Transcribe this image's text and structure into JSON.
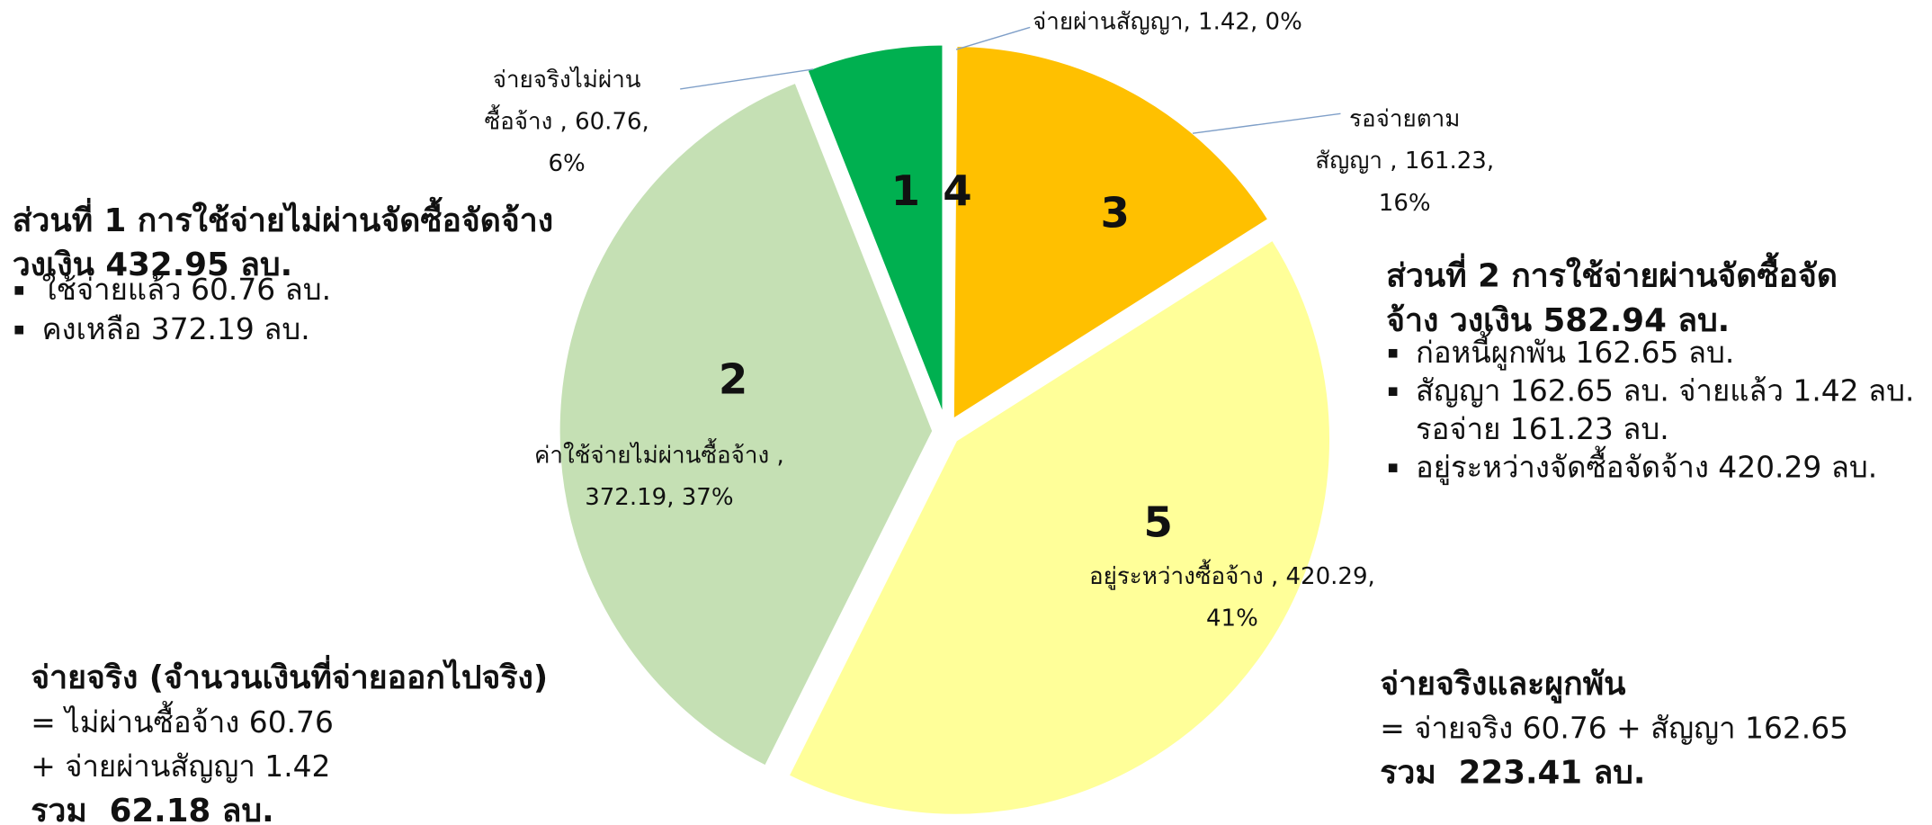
{
  "chart_data": {
    "type": "pie",
    "values": [
      1.42,
      161.23,
      420.29,
      372.19,
      60.76
    ],
    "colors": [
      "#F2B705",
      "#FFC000",
      "#FFFF99",
      "#C5E0B4",
      "#00B050"
    ],
    "slice_numbers": [
      4,
      3,
      5,
      2,
      1
    ],
    "value_labels": [
      [
        "จ่ายผ่านสัญญา, 1.42, 0%"
      ],
      [
        "รอจ่ายตาม",
        "สัญญา , 161.23,",
        "16%"
      ],
      [
        "อยู่ระหว่างซื้อจ้าง , 420.29,",
        "41%"
      ],
      [
        "ค่าใช้จ่ายไม่ผ่านซื้อจ้าง ,",
        "372.19, 37%"
      ],
      [
        "จ่ายจริงไม่ผ่าน",
        "ซื้อจ้าง , 60.76,",
        "6%"
      ]
    ],
    "annotations": [
      {
        "lines": [
          {
            "text": "ส่วนที่ 1 การใช้จ่ายไม่ผ่านจัดซื้อจัดจ้าง",
            "bold": true
          },
          {
            "text": "วงเงิน 432.95 ลบ.",
            "bold": true
          },
          {
            "text": "ใช้จ่ายแล้ว 60.76 ลบ.",
            "bullet": true
          },
          {
            "text": "คงเหลือ 372.19 ลบ.",
            "bullet": true
          }
        ]
      },
      {
        "lines": [
          {
            "text": "ส่วนที่ 2 การใช้จ่ายผ่านจัดซื้อจัด",
            "bold": true
          },
          {
            "text": "จ้าง วงเงิน 582.94 ลบ.",
            "bold": true
          },
          {
            "text": "ก่อหนี้ผูกพัน 162.65 ลบ.",
            "bullet": true
          },
          {
            "text": "สัญญา 162.65 ลบ. จ่ายแล้ว 1.42 ลบ.",
            "bullet": true
          },
          {
            "text": "รอจ่าย 161.23 ลบ.",
            "indent": true
          },
          {
            "text": "อยู่ระหว่างจัดซื้อจัดจ้าง 420.29 ลบ.",
            "bullet": true
          }
        ]
      },
      {
        "lines": [
          {
            "text": "จ่ายจริง (จำนวนเงินที่จ่ายออกไปจริง)",
            "bold": true
          },
          {
            "text": "= ไม่ผ่านซื้อจ้าง 60.76"
          },
          {
            "text": "+ จ่ายผ่านสัญญา 1.42"
          },
          {
            "text": "รวม  62.18 ลบ.",
            "bold": true
          }
        ]
      },
      {
        "lines": [
          {
            "text": "จ่ายจริงและผูกพัน",
            "bold": true
          },
          {
            "text": "= จ่ายจริง 60.76 + สัญญา 162.65"
          },
          {
            "text": "รวม  223.41 ลบ.",
            "bold": true
          }
        ]
      }
    ]
  }
}
